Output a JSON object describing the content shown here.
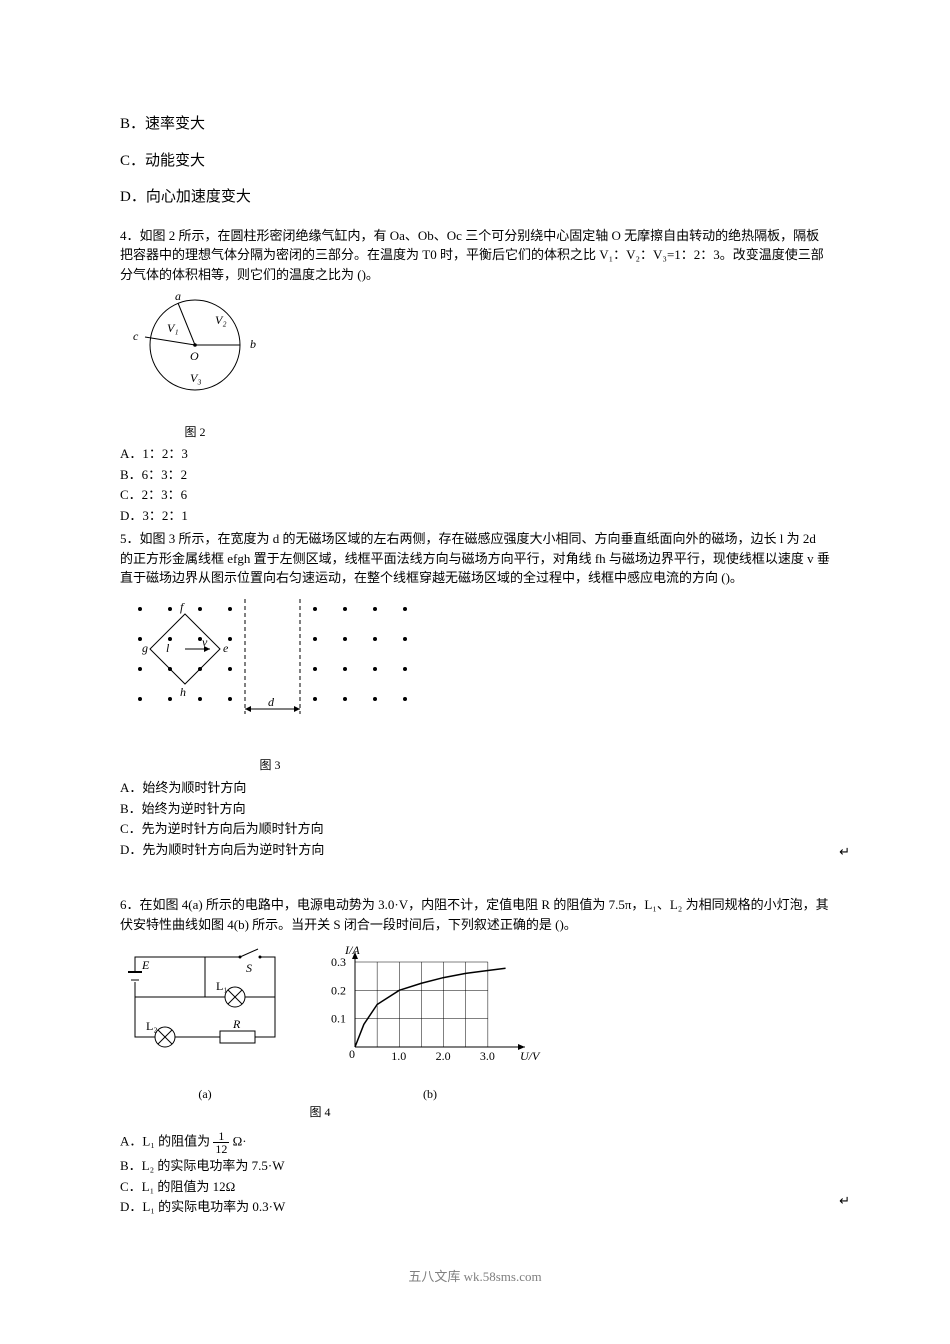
{
  "q3_opts": {
    "B": "B．速率变大",
    "C": "C．动能变大",
    "D": "D．向心加速度变大"
  },
  "q4": {
    "text": "4．如图 2 所示，在圆柱形密闭绝缘气缸内，有 Oa、Ob、Oc 三个可分别绕中心固定轴 O 无摩擦自由转动的绝热隔板，隔板把容器中的理想气体分隔为密闭的三部分。在温度为 T0 时，平衡后它们的体积之比 V₁：V₂：V₃=1：2：3。改变温度使三部分气体的体积相等，则它们的温度之比为 ()。",
    "figLabel": "图 2",
    "circle": {
      "label_a": "a",
      "label_b": "b",
      "label_c": "c",
      "V1": "V₁",
      "V2": "V₂",
      "V3": "V₃",
      "O": "O"
    },
    "opts": {
      "A": "A．1：2：3",
      "B": "B．6：3：2",
      "C": "C．2：3：6",
      "D": "D．3：2：1"
    }
  },
  "q5": {
    "text": "5．如图 3 所示，在宽度为 d 的无磁场区域的左右两侧，存在磁感应强度大小相同、方向垂直纸面向外的磁场，边长 l 为 2d 的正方形金属线框 efgh 置于左侧区域，线框平面法线方向与磁场方向平行，对角线 fh 与磁场边界平行，现使线框以速度 v 垂直于磁场边界从图示位置向右匀速运动，在整个线框穿越无磁场区域的全过程中，线框中感应电流的方向 ()。",
    "figLabel": "图 3",
    "opts": {
      "A": "A．始终为顺时针方向",
      "B": "B．始终为逆时针方向",
      "C": "C．先为逆时针方向后为顺时针方向",
      "D": "D．先为顺时针方向后为逆时针方向"
    }
  },
  "q6": {
    "text": "6．在如图 4(a) 所示的电路中，电源电动势为 3.0·V，内阻不计，定值电阻 R 的阻值为 7.5π，L₁、L₂ 为相同规格的小灯泡，其伏安特性曲线如图 4(b) 所示。当开关 S 闭合一段时间后，下列叙述正确的是 ()。",
    "figLabel": "图 4",
    "sublabel_a": "(a)",
    "sublabel_b": "(b)",
    "chart": {
      "type": "line",
      "ylabel": "I/A",
      "xlabel": "U/V",
      "xlim": [
        0,
        3.5
      ],
      "ylim": [
        0,
        0.3
      ],
      "xticks": [
        "1.0",
        "2.0",
        "3.0"
      ],
      "yticks": [
        "0.1",
        "0.2",
        "0.3"
      ],
      "grid_color": "#000000",
      "line_color": "#000000",
      "bg_color": "#ffffff",
      "points": [
        [
          0,
          0
        ],
        [
          0.2,
          0.08
        ],
        [
          0.5,
          0.15
        ],
        [
          1.0,
          0.2
        ],
        [
          1.5,
          0.225
        ],
        [
          2.0,
          0.245
        ],
        [
          2.5,
          0.26
        ],
        [
          3.0,
          0.27
        ],
        [
          3.4,
          0.278
        ]
      ]
    },
    "circuit": {
      "E": "E",
      "S": "S",
      "L1": "L₁",
      "L2": "L₂",
      "R": "R"
    },
    "opts": {
      "A_pre": "A．L₁ 的阻值为 ",
      "A_num": "1",
      "A_den": "12",
      "A_post": " Ω·",
      "B": "B．L₂ 的实际电功率为 7.5·W",
      "C": "C．L₁ 的阻值为 12Ω",
      "D": "D．L₁ 的实际电功率为 0.3·W"
    }
  },
  "carriage": "↵",
  "footer": "五八文库 wk.58sms.com"
}
